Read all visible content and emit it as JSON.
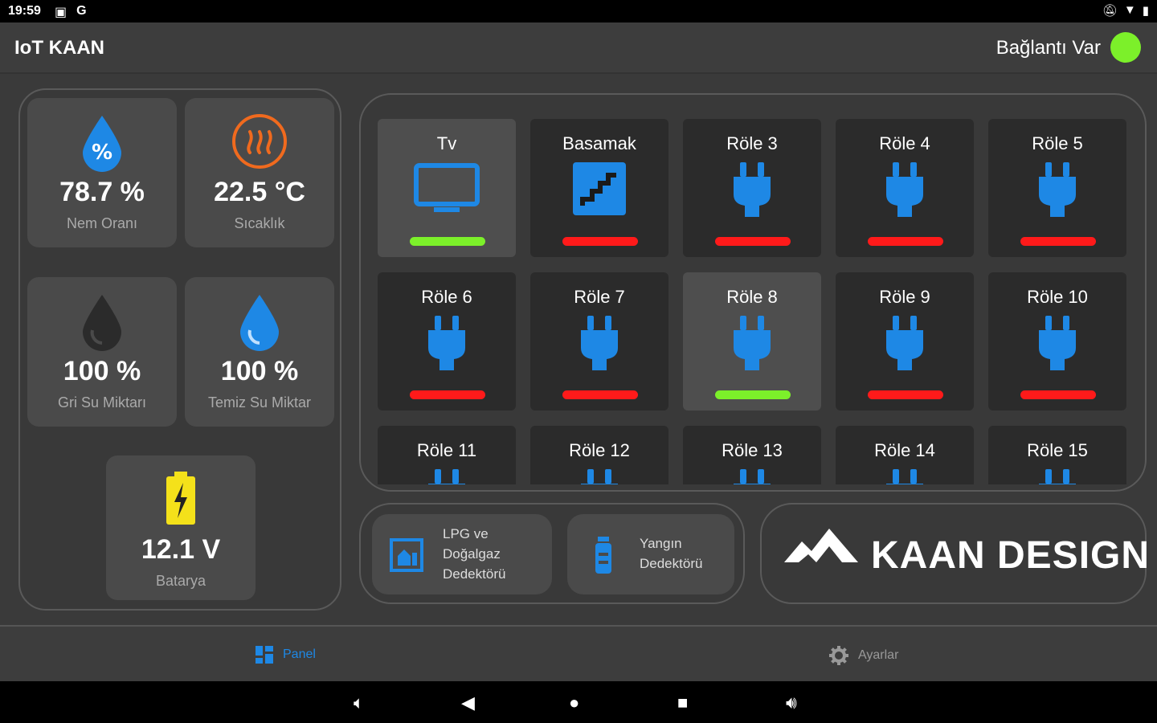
{
  "statusbar": {
    "time": "19:59",
    "left_icons": [
      "image-icon",
      "google-icon"
    ],
    "right_icons": [
      "mute-icon",
      "wifi-icon",
      "battery-icon"
    ]
  },
  "appbar": {
    "title": "IoT KAAN",
    "connection_text": "Bağlantı Var",
    "connection_color": "#7cf02a"
  },
  "sensors": [
    {
      "value": "78.7 %",
      "label": "Nem Oranı",
      "icon": "humidity-drop-icon",
      "color": "#1e88e5"
    },
    {
      "value": "22.5 °C",
      "label": "Sıcaklık",
      "icon": "heat-icon",
      "color": "#f06a1e"
    },
    {
      "value": "100 %",
      "label": "Gri Su Miktarı",
      "icon": "gray-water-drop-icon",
      "color": "#2b2b2b"
    },
    {
      "value": "100 %",
      "label": "Temiz Su Miktar",
      "icon": "clean-water-drop-icon",
      "color": "#1e88e5"
    },
    {
      "value": "12.1 V",
      "label": "Batarya",
      "icon": "battery-charging-icon",
      "color": "#f4e11a"
    }
  ],
  "relays": [
    {
      "name": "Tv",
      "icon": "tv-icon",
      "on": true
    },
    {
      "name": "Basamak",
      "icon": "stairs-icon",
      "on": false
    },
    {
      "name": "Röle 3",
      "icon": "plug-icon",
      "on": false
    },
    {
      "name": "Röle 4",
      "icon": "plug-icon",
      "on": false
    },
    {
      "name": "Röle 5",
      "icon": "plug-icon",
      "on": false
    },
    {
      "name": "Röle 6",
      "icon": "plug-icon",
      "on": false
    },
    {
      "name": "Röle 7",
      "icon": "plug-icon",
      "on": false
    },
    {
      "name": "Röle 8",
      "icon": "plug-icon",
      "on": true
    },
    {
      "name": "Röle 9",
      "icon": "plug-icon",
      "on": false
    },
    {
      "name": "Röle 10",
      "icon": "plug-icon",
      "on": false
    },
    {
      "name": "Röle 11",
      "icon": "plug-icon",
      "on": false
    },
    {
      "name": "Röle 12",
      "icon": "plug-icon",
      "on": false
    },
    {
      "name": "Röle 13",
      "icon": "plug-icon",
      "on": false
    },
    {
      "name": "Röle 14",
      "icon": "plug-icon",
      "on": false
    },
    {
      "name": "Röle 15",
      "icon": "plug-icon",
      "on": false
    }
  ],
  "colors": {
    "on": "#7cf02a",
    "off": "#ff1a1a",
    "accent": "#1e88e5"
  },
  "detectors": [
    {
      "lines": [
        "LPG ve",
        "Doğalgaz",
        "Dedektörü"
      ],
      "icon": "gas-detector-icon"
    },
    {
      "lines": [
        "Yangın",
        "Dedektörü"
      ],
      "icon": "fire-extinguisher-icon"
    }
  ],
  "brand": {
    "text": "KAAN DESIGN",
    "icon": "mountain-logo-icon"
  },
  "bottomnav": {
    "panel_label": "Panel",
    "settings_label": "Ayarlar"
  },
  "sysnav": [
    "volume-down-icon",
    "back-icon",
    "home-icon",
    "recents-icon",
    "volume-up-icon"
  ]
}
